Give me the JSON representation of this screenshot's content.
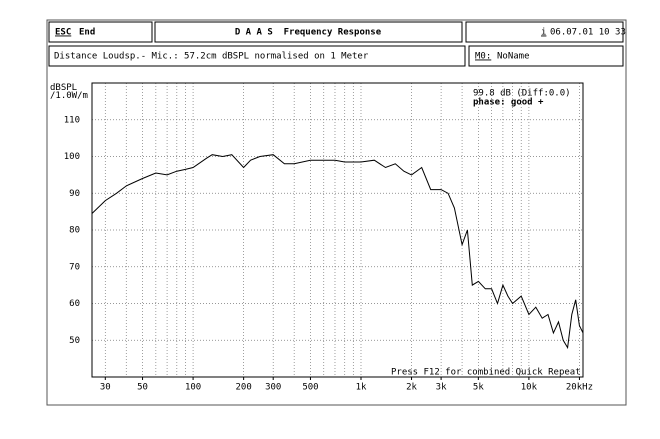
{
  "header": {
    "esc_key": "ESC",
    "esc_label": "End",
    "title": "D A A S  Frequency Response",
    "info_key": "i",
    "datetime": "06.07.01 10 33",
    "description": "Distance Loudsp.- Mic.: 57.2cm dBSPL normalised on 1 Meter",
    "memory_key": "M0:",
    "memory_name": "NoName"
  },
  "chart_data": {
    "type": "line",
    "y_label": "dBSPL\n/1.0W/m",
    "log_x": true,
    "grid": true,
    "annotations": [
      "99.8 dB (Diff:0.0)",
      "phase: good +",
      "Press F12 for combined Quick Repeat"
    ],
    "xlim": [
      25,
      21000
    ],
    "ylim": [
      40,
      120
    ],
    "xticks": [
      30,
      50,
      100,
      200,
      300,
      500,
      {
        "value": 1000,
        "label": "1k"
      },
      {
        "value": 2000,
        "label": "2k"
      },
      {
        "value": 3000,
        "label": "3k"
      },
      {
        "value": 5000,
        "label": "5k"
      },
      {
        "value": 10000,
        "label": "10k"
      },
      {
        "value": 20000,
        "label": "20kHz"
      }
    ],
    "xminor": [
      30,
      40,
      50,
      60,
      70,
      80,
      90,
      100,
      200,
      300,
      400,
      500,
      600,
      700,
      800,
      900,
      1000,
      2000,
      3000,
      4000,
      5000,
      6000,
      7000,
      8000,
      9000,
      10000,
      20000
    ],
    "yticks": [
      50,
      60,
      70,
      80,
      90,
      100,
      110
    ],
    "x": [
      25,
      30,
      35,
      40,
      50,
      60,
      70,
      80,
      90,
      100,
      120,
      130,
      150,
      170,
      200,
      220,
      250,
      300,
      350,
      400,
      500,
      600,
      700,
      800,
      1000,
      1200,
      1400,
      1600,
      1800,
      2000,
      2300,
      2600,
      3000,
      3300,
      3600,
      4000,
      4300,
      4600,
      5000,
      5500,
      6000,
      6500,
      7000,
      7500,
      8000,
      9000,
      10000,
      11000,
      12000,
      13000,
      14000,
      15000,
      16000,
      17000,
      18000,
      19000,
      20000,
      21000
    ],
    "series": [
      {
        "color": "#000000",
        "values": [
          84.5,
          88,
          90,
          92,
          94,
          95.5,
          95,
          96,
          96.5,
          97,
          99.5,
          100.5,
          100,
          100.5,
          97,
          99,
          100,
          100.5,
          98,
          98,
          99,
          99,
          99,
          98.5,
          98.5,
          99,
          97,
          98,
          96,
          95,
          97,
          91,
          91,
          90,
          86,
          76,
          80,
          65,
          66,
          64,
          64,
          60,
          65,
          62,
          60,
          62,
          57,
          59,
          56,
          57,
          52,
          55,
          50,
          48,
          57,
          61,
          54,
          52
        ]
      }
    ]
  }
}
